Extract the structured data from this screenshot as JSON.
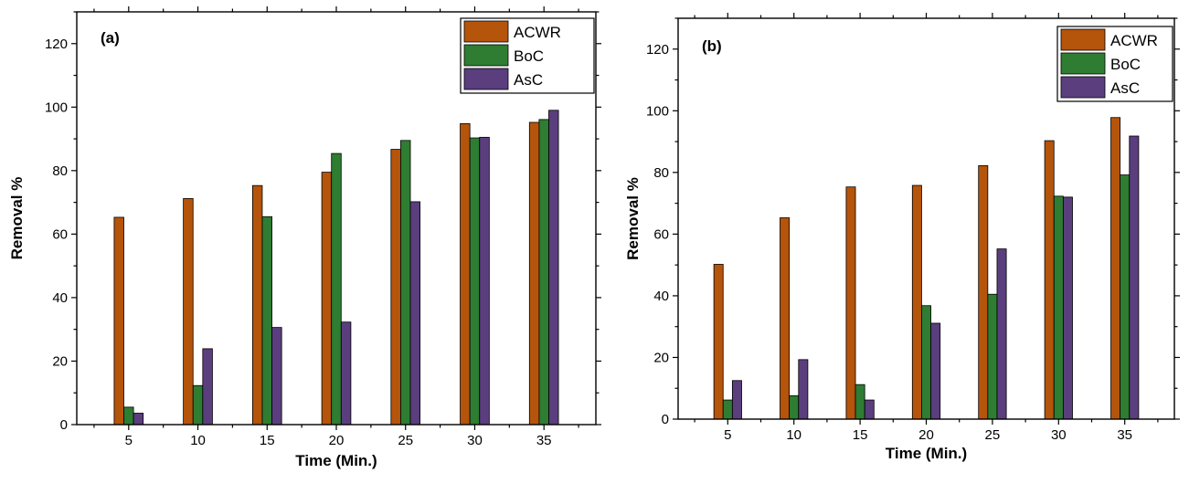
{
  "chart_data": [
    {
      "type": "bar",
      "panel_label": "(a)",
      "xlabel": "Time (Min.)",
      "ylabel": "Removal %",
      "categories": [
        "5",
        "10",
        "15",
        "20",
        "25",
        "30",
        "35"
      ],
      "ylim": [
        0,
        130
      ],
      "yticks": [
        0,
        20,
        40,
        60,
        80,
        100,
        120
      ],
      "legend_position": "top-right",
      "series": [
        {
          "name": "ACWR",
          "color": "#b5540b",
          "values": [
            65.3,
            71.2,
            75.3,
            79.5,
            86.7,
            94.8,
            95.2
          ]
        },
        {
          "name": "BoC",
          "color": "#2e7d32",
          "values": [
            5.5,
            12.3,
            65.5,
            85.4,
            89.5,
            90.3,
            96.1
          ]
        },
        {
          "name": "AsC",
          "color": "#5a3e7e",
          "values": [
            3.6,
            23.9,
            30.6,
            32.3,
            70.2,
            90.5,
            99.0
          ]
        }
      ]
    },
    {
      "type": "bar",
      "panel_label": "(b)",
      "xlabel": "Time (Min.)",
      "ylabel": "Removal %",
      "categories": [
        "5",
        "10",
        "15",
        "20",
        "25",
        "30",
        "35"
      ],
      "ylim": [
        0,
        130
      ],
      "yticks": [
        0,
        20,
        40,
        60,
        80,
        100,
        120
      ],
      "legend_position": "top-right",
      "series": [
        {
          "name": "ACWR",
          "color": "#b5540b",
          "values": [
            50.2,
            65.3,
            75.3,
            75.8,
            82.2,
            90.3,
            97.8
          ]
        },
        {
          "name": "BoC",
          "color": "#2e7d32",
          "values": [
            6.2,
            7.6,
            11.2,
            36.8,
            40.5,
            72.3,
            79.2
          ]
        },
        {
          "name": "AsC",
          "color": "#5a3e7e",
          "values": [
            12.5,
            19.3,
            6.2,
            31.1,
            55.2,
            72.0,
            91.8
          ]
        }
      ]
    }
  ]
}
